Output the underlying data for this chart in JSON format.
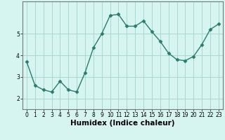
{
  "title": "",
  "xlabel": "Humidex (Indice chaleur)",
  "x": [
    0,
    1,
    2,
    3,
    4,
    5,
    6,
    7,
    8,
    9,
    10,
    11,
    12,
    13,
    14,
    15,
    16,
    17,
    18,
    19,
    20,
    21,
    22,
    23
  ],
  "y": [
    3.7,
    2.6,
    2.4,
    2.3,
    2.8,
    2.4,
    2.3,
    3.2,
    4.35,
    5.0,
    5.85,
    5.9,
    5.35,
    5.35,
    5.6,
    5.1,
    4.65,
    4.1,
    3.8,
    3.75,
    3.95,
    4.5,
    5.2,
    5.45
  ],
  "line_color": "#2a7b6e",
  "marker": "D",
  "marker_size": 2.5,
  "bg_color": "#d6f5f0",
  "grid_color": "#aad8d3",
  "axes_color": "#777777",
  "ylim": [
    1.5,
    6.5
  ],
  "yticks": [
    2,
    3,
    4,
    5
  ],
  "xticks": [
    0,
    1,
    2,
    3,
    4,
    5,
    6,
    7,
    8,
    9,
    10,
    11,
    12,
    13,
    14,
    15,
    16,
    17,
    18,
    19,
    20,
    21,
    22,
    23
  ],
  "tick_fontsize": 5.5,
  "xlabel_fontsize": 7.5,
  "line_width": 1.0
}
